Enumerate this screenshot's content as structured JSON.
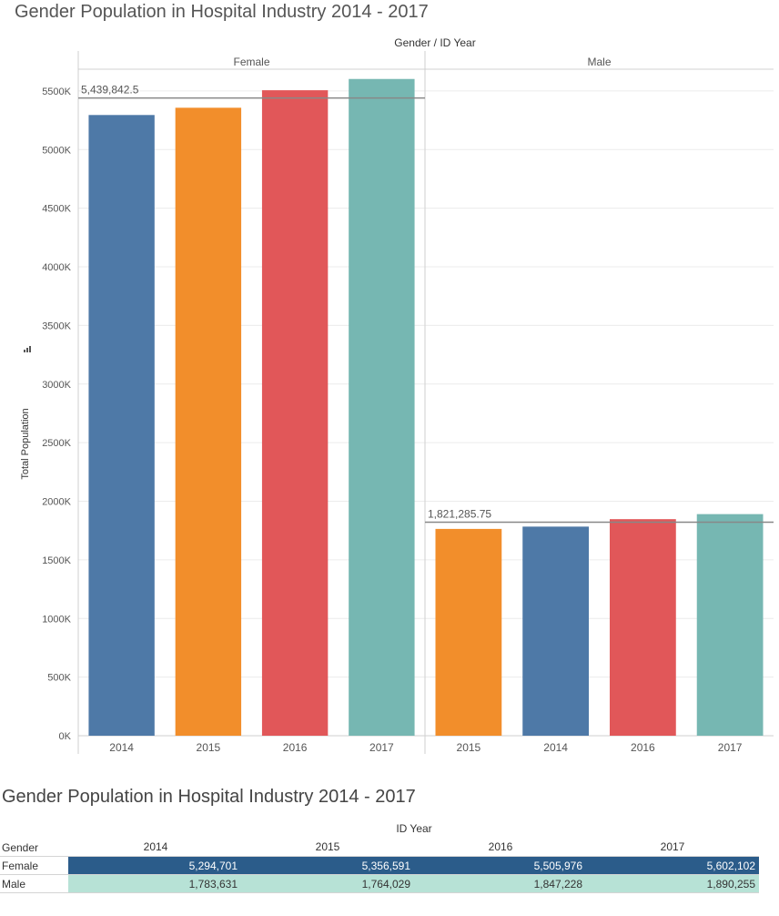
{
  "title": "Gender Population in Hospital Industry 2014 - 2017",
  "chart_data": {
    "type": "bar",
    "title": "Gender Population in Hospital Industry 2014 - 2017",
    "header": "Gender  /  ID Year",
    "ylabel": "Total Population",
    "ylim": [
      0,
      5600000
    ],
    "yticks": [
      0,
      500000,
      1000000,
      1500000,
      2000000,
      2500000,
      3000000,
      3500000,
      4000000,
      4500000,
      5000000,
      5500000
    ],
    "ytick_labels": [
      "0K",
      "500K",
      "1000K",
      "1500K",
      "2000K",
      "2500K",
      "3000K",
      "3500K",
      "4000K",
      "4500K",
      "5000K",
      "5500K"
    ],
    "grid": true,
    "panels": [
      {
        "name": "Female",
        "categories": [
          "2014",
          "2015",
          "2016",
          "2017"
        ],
        "values": [
          5294701,
          5356591,
          5505976,
          5602102
        ],
        "colors": [
          "#4e79a7",
          "#f28e2b",
          "#e15759",
          "#76b7b2"
        ],
        "reference_line": {
          "value": 5439842.5,
          "label": "5,439,842.5"
        }
      },
      {
        "name": "Male",
        "categories": [
          "2015",
          "2014",
          "2016",
          "2017"
        ],
        "values": [
          1764029,
          1783631,
          1847228,
          1890255
        ],
        "colors": [
          "#f28e2b",
          "#4e79a7",
          "#e15759",
          "#76b7b2"
        ],
        "reference_line": {
          "value": 1821285.75,
          "label": "1,821,285.75"
        }
      }
    ]
  },
  "table": {
    "title": "Gender Population in Hospital Industry 2014 - 2017",
    "column_title": "ID Year",
    "row_header": "Gender",
    "years": [
      "2014",
      "2015",
      "2016",
      "2017"
    ],
    "rows": [
      {
        "label": "Female",
        "values": [
          "5,294,701",
          "5,356,591",
          "5,505,976",
          "5,602,102"
        ],
        "band_color": "#2b5c8a",
        "text_color": "#ffffff"
      },
      {
        "label": "Male",
        "values": [
          "1,783,631",
          "1,764,029",
          "1,847,228",
          "1,890,255"
        ],
        "band_color": "#b7e2d6",
        "text_color": "#333333"
      }
    ]
  }
}
